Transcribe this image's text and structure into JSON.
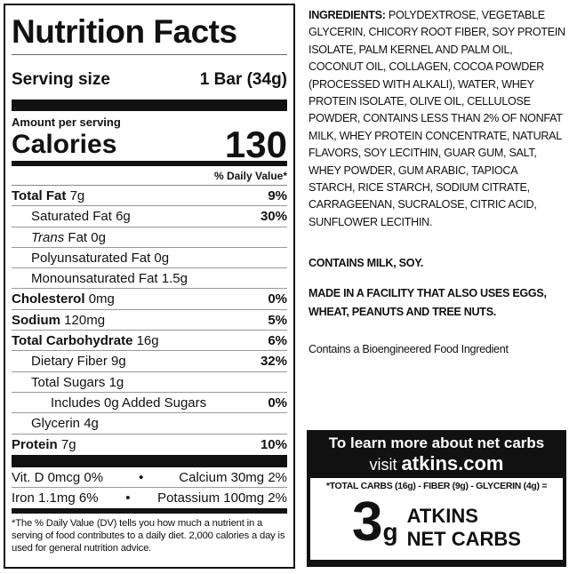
{
  "label": {
    "title": "Nutrition Facts",
    "serving_size_label": "Serving size",
    "serving_size_value": "1 Bar (34g)",
    "amount_per_serving": "Amount per serving",
    "calories_label": "Calories",
    "calories_value": "130",
    "dv_header": "% Daily Value*",
    "nutrients": [
      {
        "name": "Total Fat",
        "amount": "7g",
        "dv": "9%"
      },
      {
        "name": "Saturated Fat",
        "amount": "6g",
        "dv": "30%"
      },
      {
        "name": "Trans",
        "amount": "Fat 0g",
        "dv": ""
      },
      {
        "name": "Polyunsaturated Fat",
        "amount": "0g",
        "dv": ""
      },
      {
        "name": "Monounsaturated Fat",
        "amount": "1.5g",
        "dv": ""
      },
      {
        "name": "Cholesterol",
        "amount": "0mg",
        "dv": "0%"
      },
      {
        "name": "Sodium",
        "amount": "120mg",
        "dv": "5%"
      },
      {
        "name": "Total Carbohydrate",
        "amount": "16g",
        "dv": "6%"
      },
      {
        "name": "Dietary Fiber",
        "amount": "9g",
        "dv": "32%"
      },
      {
        "name": "Total Sugars",
        "amount": "1g",
        "dv": ""
      },
      {
        "name": "Includes 0g Added Sugars",
        "amount": "",
        "dv": "0%"
      },
      {
        "name": "Glycerin",
        "amount": "4g",
        "dv": ""
      },
      {
        "name": "Protein",
        "amount": "7g",
        "dv": "10%"
      }
    ],
    "vitamins": [
      {
        "left": "Vit. D 0mcg 0%",
        "sep": "•",
        "right": "Calcium 30mg 2%"
      },
      {
        "left": "Iron 1.1mg 6%",
        "sep": "•",
        "right": "Potassium 100mg 2%"
      }
    ],
    "footnote": "*The % Daily Value (DV) tells you how much a nutrient in a serving of food contributes to a daily diet. 2,000 calories a day is used for general nutrition advice."
  },
  "ingredients": {
    "heading": "INGREDIENTS:",
    "text": " POLYDEXTROSE, VEGETABLE GLYCERIN, CHICORY ROOT FIBER, SOY PROTEIN ISOLATE, PALM KERNEL AND PALM OIL, COCONUT OIL, COLLAGEN, COCOA POWDER (PROCESSED WITH ALKALI), WATER, WHEY PROTEIN ISOLATE, OLIVE OIL, CELLULOSE POWDER, CONTAINS LESS THAN 2% OF NONFAT MILK, WHEY PROTEIN CONCENTRATE, NATURAL FLAVORS, SOY LECITHIN, GUAR GUM, SALT, WHEY POWDER, GUM ARABIC, TAPIOCA STARCH, RICE STARCH, SODIUM CITRATE, CARRAGEENAN, SUCRALOSE, CITRIC ACID, SUNFLOWER LECITHIN.",
    "allergens": "CONTAINS MILK, SOY.",
    "facility": "MADE IN A FACILITY THAT ALSO USES EGGS, WHEAT, PEANUTS AND TREE NUTS.",
    "bioengineered": "Contains a Bioengineered Food Ingredient"
  },
  "net_carbs": {
    "line1": "To learn more about net carbs",
    "visit": "visit",
    "site": "atkins.com",
    "formula": "*TOTAL CARBS (16g) - FIBER (9g) - GLYCERIN (4g) =",
    "value": "3",
    "unit": "g",
    "label1": "ATKINS",
    "label2": "NET CARBS"
  }
}
